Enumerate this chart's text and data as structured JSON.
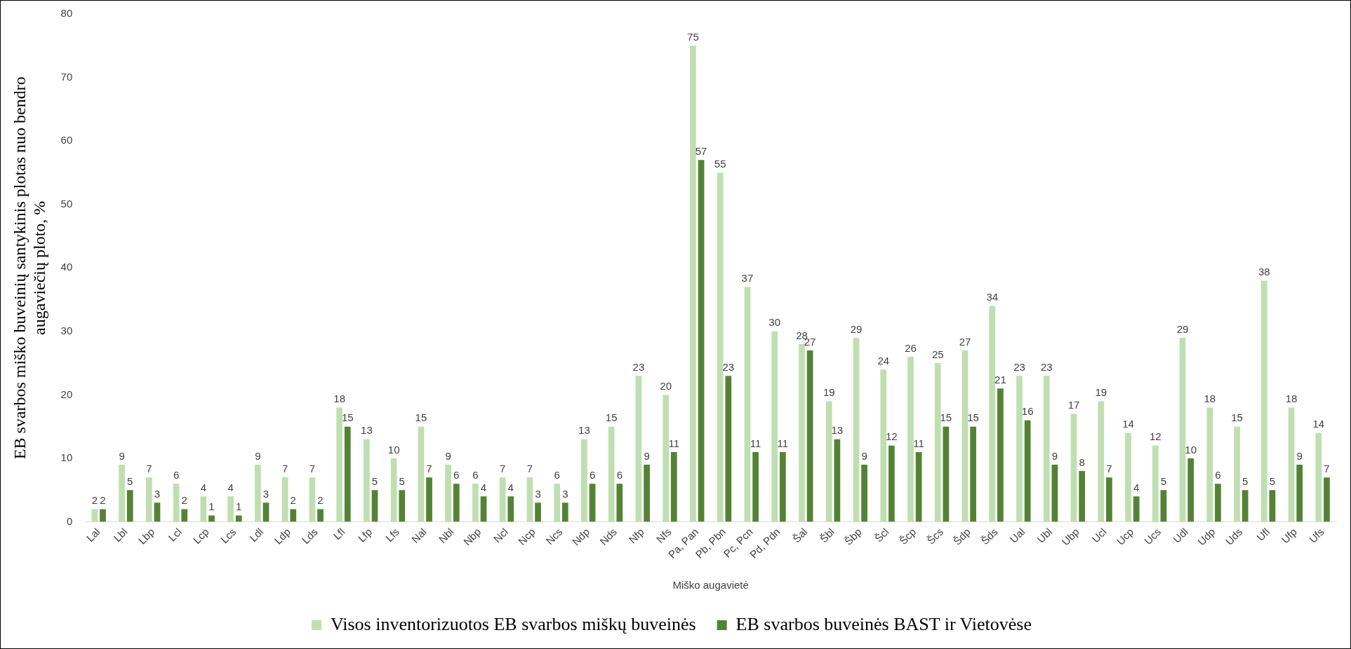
{
  "chart_data": {
    "type": "bar",
    "xlabel": "Miško augavietė",
    "ylabel": "EB svarbos miško buveinių santykinis plotas nuo bendro augaviečių ploto, %",
    "categories": [
      "Lal",
      "Lbl",
      "Lbp",
      "Lcl",
      "Lcp",
      "Lcs",
      "Ldl",
      "Ldp",
      "Lds",
      "Lfl",
      "Lfp",
      "Lfs",
      "Nal",
      "Nbl",
      "Nbp",
      "Ncl",
      "Ncp",
      "Ncs",
      "Ndp",
      "Nds",
      "Nfp",
      "Nfs",
      "Pa, Pan",
      "Pb, Pbn",
      "Pc, Pcn",
      "Pd, Pdn",
      "Šal",
      "Šbl",
      "Šbp",
      "Šcl",
      "Šcp",
      "Šcs",
      "Šdp",
      "Šds",
      "Ual",
      "Ubl",
      "Ubp",
      "Ucl",
      "Ucp",
      "Ucs",
      "Udl",
      "Udp",
      "Uds",
      "Ufl",
      "Ufp",
      "Ufs"
    ],
    "series": [
      {
        "name": "Visos inventorizuotos EB svarbos miškų buveinės",
        "color": "#bfdfb0",
        "values": [
          2,
          9,
          7,
          6,
          4,
          4,
          9,
          7,
          7,
          18,
          13,
          10,
          15,
          9,
          6,
          7,
          7,
          6,
          13,
          15,
          23,
          20,
          75,
          55,
          37,
          30,
          28,
          19,
          29,
          24,
          26,
          25,
          27,
          34,
          23,
          23,
          17,
          19,
          14,
          12,
          29,
          18,
          15,
          38,
          18,
          14
        ]
      },
      {
        "name": "EB svarbos buveinės BAST ir Vietovėse",
        "color": "#548235",
        "values": [
          2,
          5,
          3,
          2,
          1,
          1,
          3,
          2,
          2,
          15,
          5,
          5,
          7,
          6,
          4,
          4,
          3,
          3,
          6,
          6,
          9,
          11,
          57,
          23,
          11,
          11,
          27,
          13,
          9,
          12,
          11,
          15,
          15,
          21,
          16,
          9,
          8,
          7,
          4,
          5,
          10,
          6,
          5,
          5,
          9,
          7
        ]
      }
    ],
    "ylim": [
      0,
      80
    ],
    "yticks": [
      0,
      10,
      20,
      30,
      40,
      50,
      60,
      70,
      80
    ],
    "grid": false,
    "legend": "bottom",
    "data_labels": true
  }
}
